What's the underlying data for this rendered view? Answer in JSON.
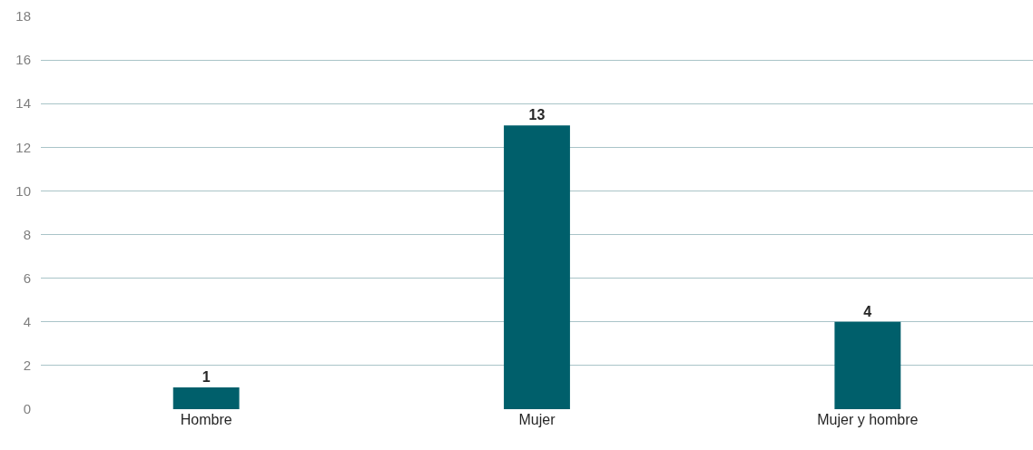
{
  "chart_data": {
    "type": "bar",
    "categories": [
      "Hombre",
      "Mujer",
      "Mujer y hombre"
    ],
    "values": [
      1,
      13,
      4
    ],
    "color": "#005f6b",
    "ylim": [
      0,
      18
    ],
    "yticks": [
      0,
      2,
      4,
      6,
      8,
      10,
      12,
      14,
      16,
      18
    ],
    "grid": "y",
    "data_labels": true,
    "legend": false
  }
}
